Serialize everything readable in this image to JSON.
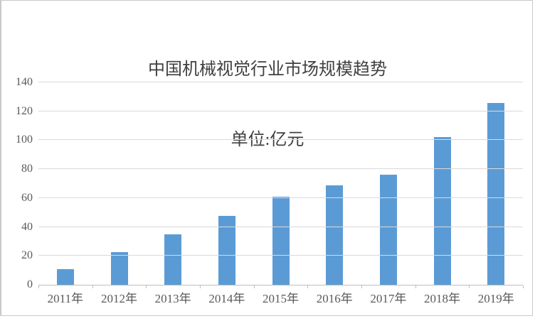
{
  "page": {
    "background": "#ffffff",
    "frame_border_color": "#c9c9c9"
  },
  "chart_data": {
    "type": "bar",
    "title": "中国机械视觉行业市场规模趋势",
    "subtitle": "单位:亿元",
    "categories": [
      "2011年",
      "2012年",
      "2013年",
      "2014年",
      "2015年",
      "2016年",
      "2017年",
      "2018年",
      "2019年"
    ],
    "values": [
      11,
      22.5,
      35,
      47.5,
      61,
      69,
      76,
      102,
      126
    ],
    "xlabel": "",
    "ylabel": "",
    "ylim": [
      0,
      140
    ],
    "yticks": [
      0,
      20,
      40,
      60,
      80,
      100,
      120,
      140
    ],
    "grid": "horizontal",
    "legend": "none",
    "colors": {
      "bar": "#5b9bd5",
      "gridline": "#d9d9d9",
      "axis_line": "#bfbfbf",
      "tick_label": "#595959",
      "title": "#404040"
    }
  }
}
